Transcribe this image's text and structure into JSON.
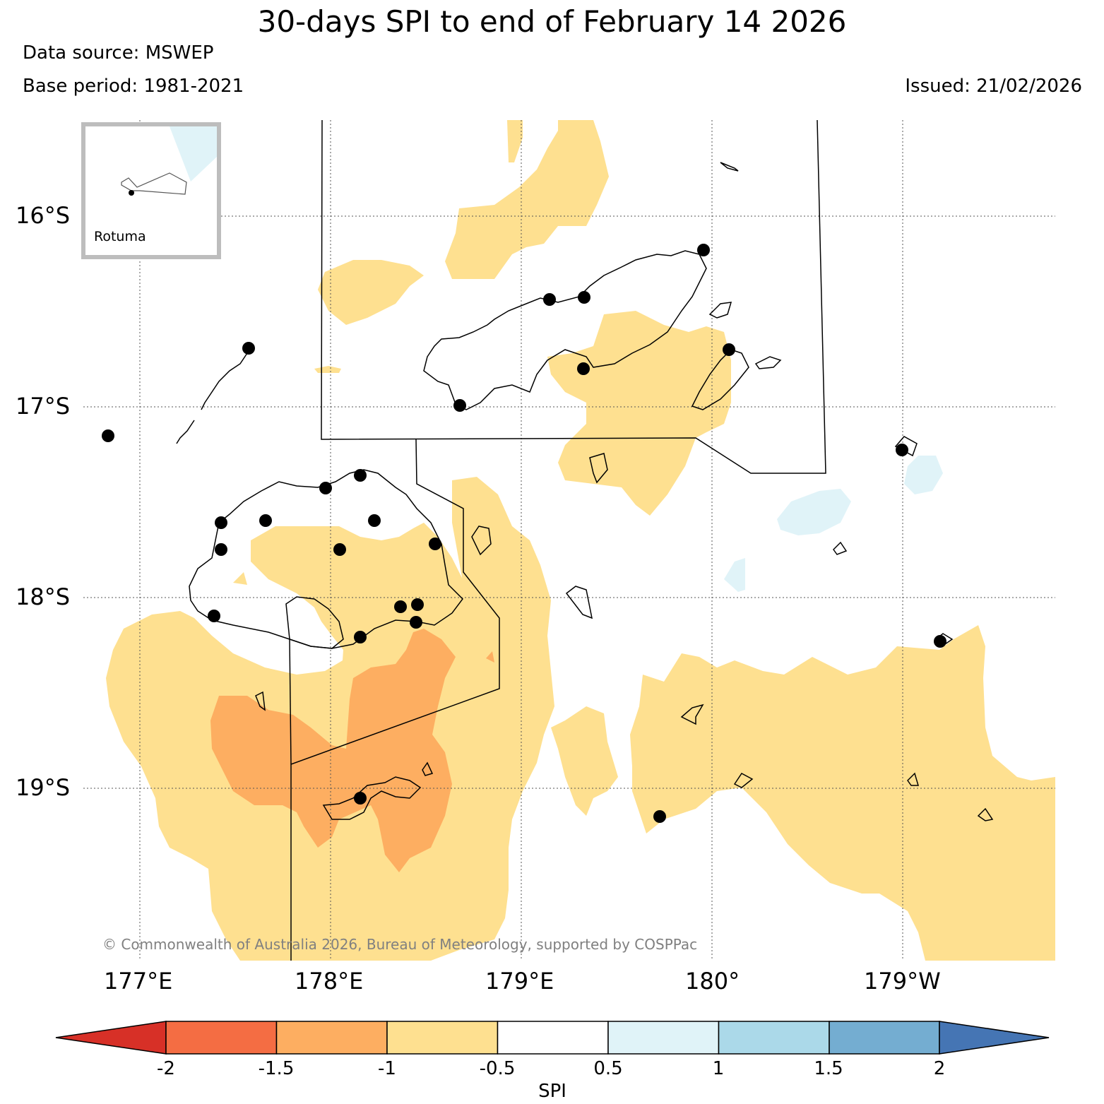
{
  "title": "30-days SPI to end of February 14 2026",
  "data_source": "Data source: MSWEP",
  "base_period": "Base period: 1981-2021",
  "issued": "Issued: 21/02/2026",
  "lat_labels": [
    "16°S",
    "17°S",
    "18°S",
    "19°S"
  ],
  "lon_labels": [
    "177°E",
    "178°E",
    "179°E",
    "180°",
    "179°W"
  ],
  "inset": {
    "label": "Rotuma"
  },
  "copyright": "© Commonwealth of Australia 2026, Bureau of Meteorology, supported by COSPPac",
  "colorbar": {
    "label": "SPI",
    "ticks": [
      "-2",
      "-1.5",
      "-1",
      "-0.5",
      "0.5",
      "1",
      "1.5",
      "2"
    ],
    "colors": [
      "#d73027",
      "#f46d43",
      "#fdae61",
      "#fee090",
      "#ffffff",
      "#e0f3f8",
      "#abd9e9",
      "#74add1",
      "#4575b4"
    ]
  },
  "legend_colors": {
    "dry_mild": "#fee090",
    "dry_moderate": "#fdae61",
    "wet_mild": "#e0f3f8"
  },
  "stations_icon": "station-dot-icon"
}
